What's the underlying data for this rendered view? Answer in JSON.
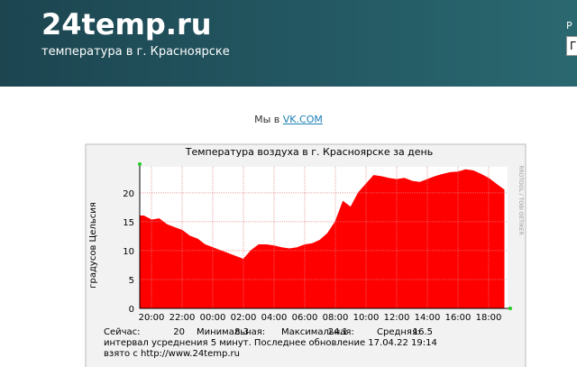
{
  "header": {
    "title": "24temp.ru",
    "subtitle": "температура в г. Красноярске",
    "right_label": "Р",
    "input_value": "Г"
  },
  "social": {
    "text": "Мы в",
    "link": "VK.COM"
  },
  "chart_data": {
    "type": "area",
    "title": "Температура воздуха в г. Красноярске за день",
    "y_label": "градусов Цельсия",
    "side_text": "RRDTOOL / TOBI OETIKER",
    "x": [
      "19:30",
      "20:00",
      "20:30",
      "21:00",
      "21:30",
      "22:00",
      "22:30",
      "23:00",
      "23:30",
      "00:00",
      "00:30",
      "01:00",
      "01:30",
      "02:00",
      "02:30",
      "03:00",
      "03:30",
      "04:00",
      "04:30",
      "05:00",
      "05:30",
      "06:00",
      "06:30",
      "07:00",
      "07:30",
      "08:00",
      "08:30",
      "09:00",
      "09:30",
      "10:00",
      "10:30",
      "11:00",
      "11:30",
      "12:00",
      "12:30",
      "13:00",
      "13:30",
      "14:00",
      "14:30",
      "15:00",
      "15:30",
      "16:00",
      "16:30",
      "17:00",
      "17:30",
      "18:00",
      "18:30",
      "19:00"
    ],
    "values": [
      16,
      15.3,
      15.5,
      14.5,
      14,
      13.5,
      12.5,
      12,
      11,
      10.5,
      10,
      9.5,
      9,
      8.5,
      10,
      11,
      11,
      10.8,
      10.5,
      10.3,
      10.5,
      11,
      11.2,
      11.8,
      13,
      15,
      18.5,
      17.5,
      20,
      21.5,
      23,
      22.8,
      22.5,
      22.3,
      22.5,
      22,
      21.8,
      22.3,
      22.8,
      23.2,
      23.5,
      23.6,
      24,
      23.8,
      23.2,
      22.5,
      21.5,
      20.5
    ],
    "color": "#ff0000",
    "ylim": [
      0,
      24.5
    ],
    "yticks": [
      0,
      5,
      10,
      15,
      20
    ],
    "xticks": [
      "20:00",
      "22:00",
      "00:00",
      "02:00",
      "04:00",
      "06:00",
      "08:00",
      "10:00",
      "12:00",
      "14:00",
      "16:00",
      "18:00"
    ],
    "grid": true,
    "stats": [
      {
        "label": "Сейчас:",
        "value": 20
      },
      {
        "label": "Минимальная:",
        "value": 8.3
      },
      {
        "label": "Максимальная:",
        "value": 24.1
      },
      {
        "label": "Средняя:",
        "value": 16.5
      }
    ],
    "footer_lines": [
      "интервал усреднения 5 минут. Последнее обновление 17.04.22 19:14",
      "взято с http://www.24temp.ru"
    ]
  }
}
